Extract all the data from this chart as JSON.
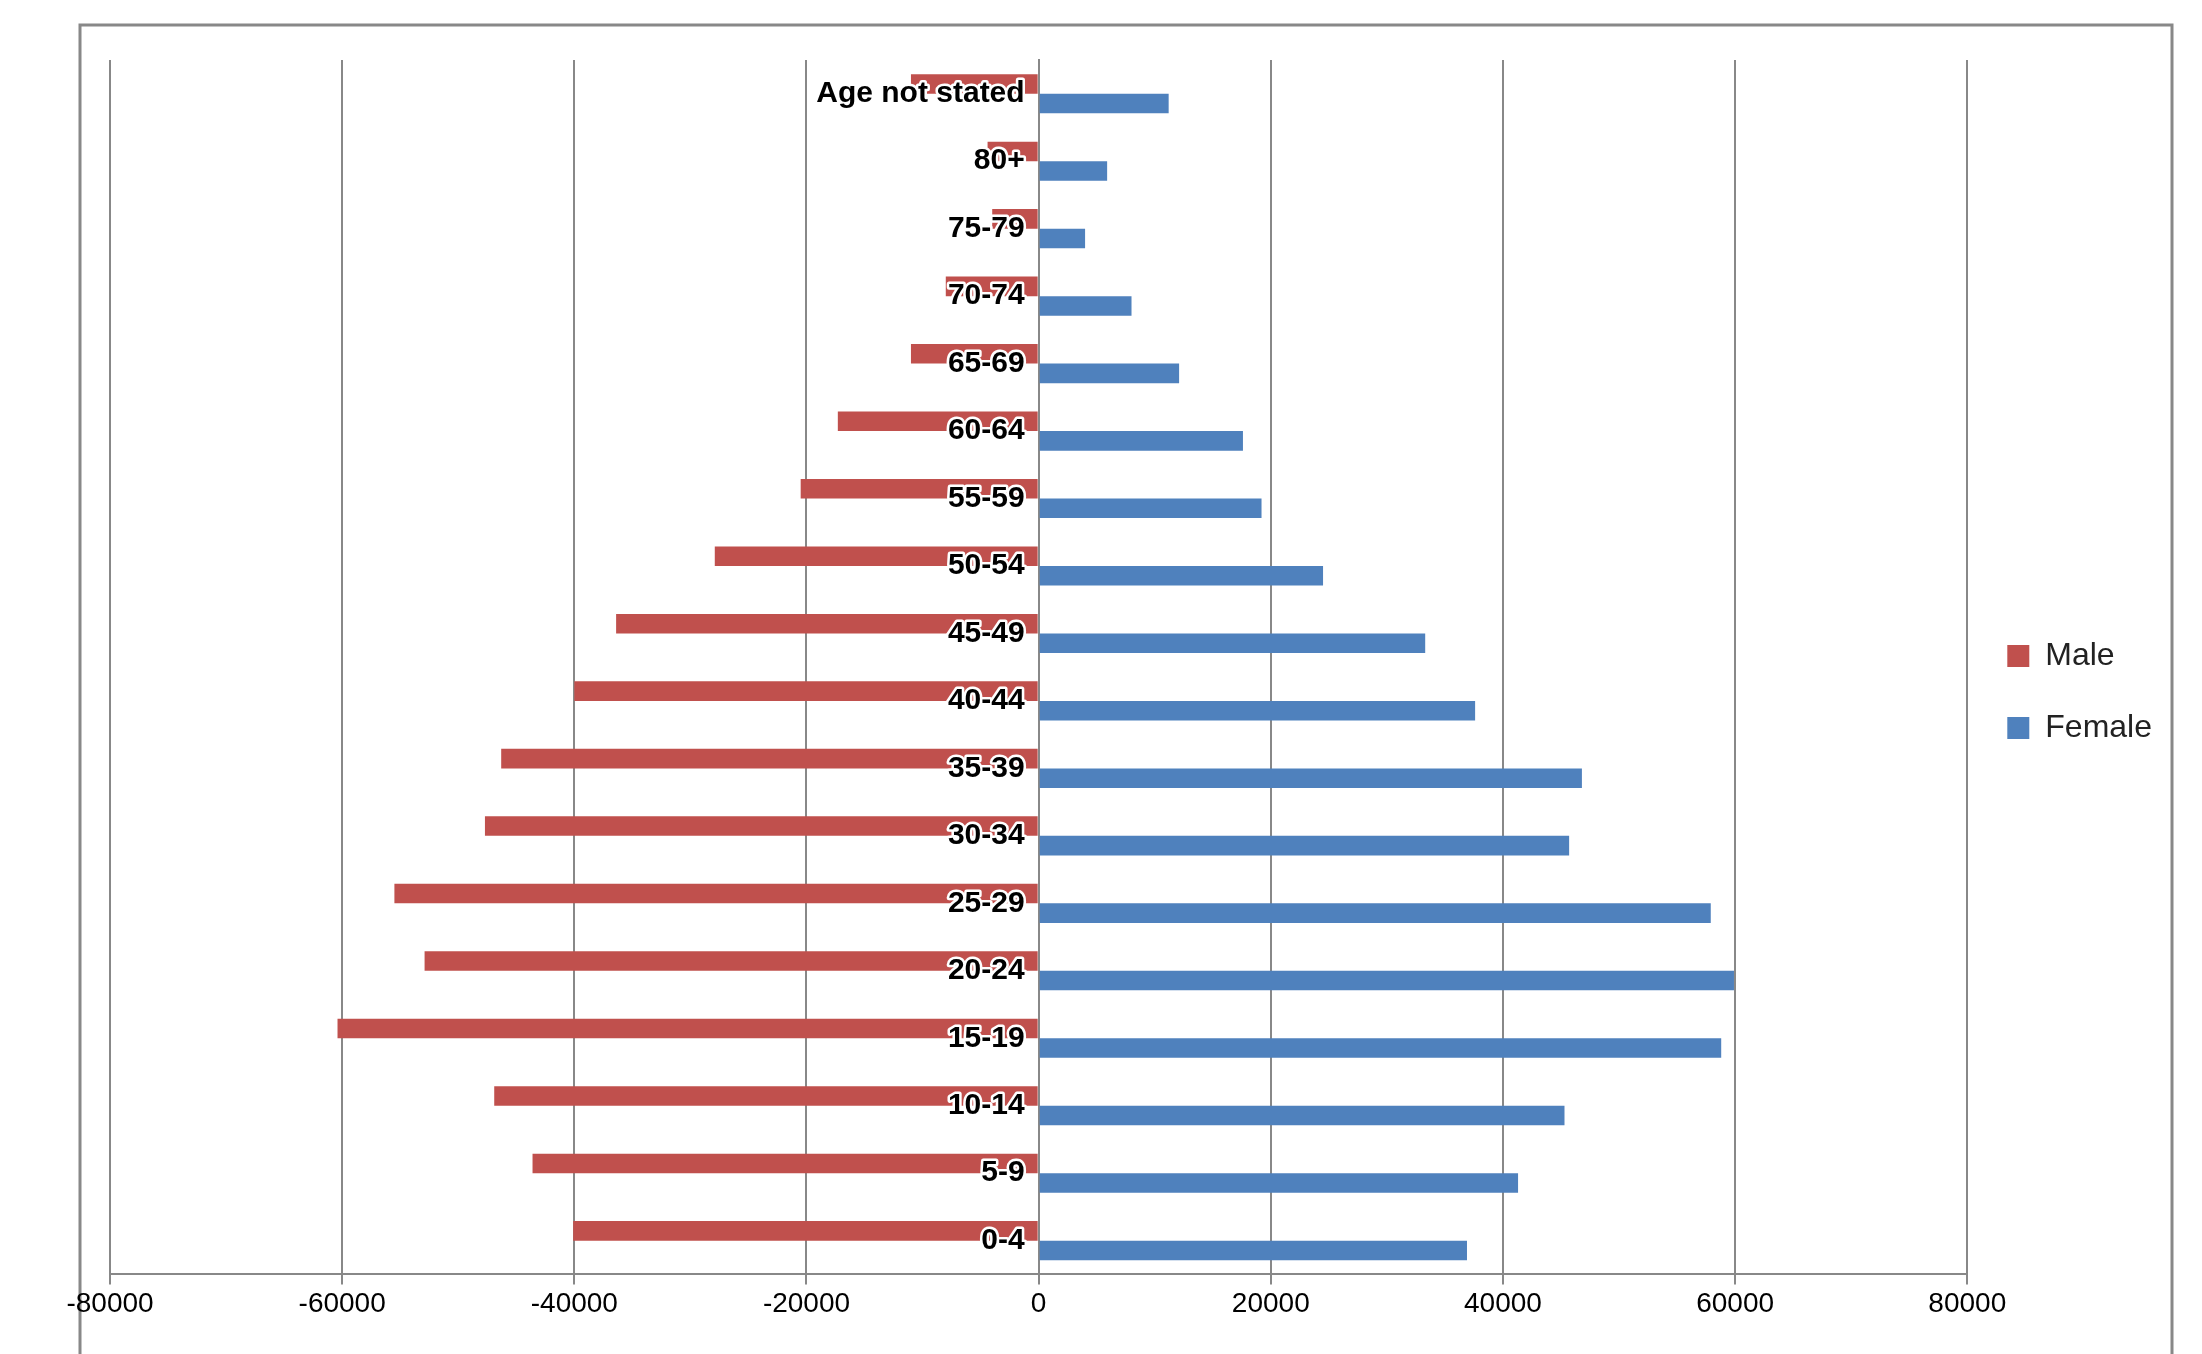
{
  "chart_data": {
    "type": "bar",
    "orientation": "horizontal",
    "categories": [
      "Age not stated",
      "80+",
      "75-79",
      "70-74",
      "65-69",
      "60-64",
      "55-59",
      "50-54",
      "45-49",
      "40-44",
      "35-39",
      "30-34",
      "25-29",
      "20-24",
      "15-19",
      "10-14",
      "5-9",
      "0-4"
    ],
    "series": [
      {
        "name": "Male",
        "color": "#c0504d",
        "values": [
          -11000,
          -4400,
          -4000,
          -8000,
          -11000,
          -17300,
          -20500,
          -27900,
          -36400,
          -40000,
          -46300,
          -47700,
          -55500,
          -52900,
          -60400,
          -46900,
          -43600,
          -40100
        ]
      },
      {
        "name": "Female",
        "color": "#4f81bd",
        "values": [
          11200,
          5900,
          4000,
          8000,
          12100,
          17600,
          19200,
          24500,
          33300,
          37600,
          46800,
          45700,
          57900,
          59900,
          58800,
          45300,
          41300,
          36900
        ]
      }
    ],
    "xlim": [
      -80000,
      80000
    ],
    "xticks": [
      -80000,
      -60000,
      -40000,
      -20000,
      0,
      20000,
      40000,
      60000,
      80000
    ],
    "grid": "x",
    "legend": "right"
  }
}
